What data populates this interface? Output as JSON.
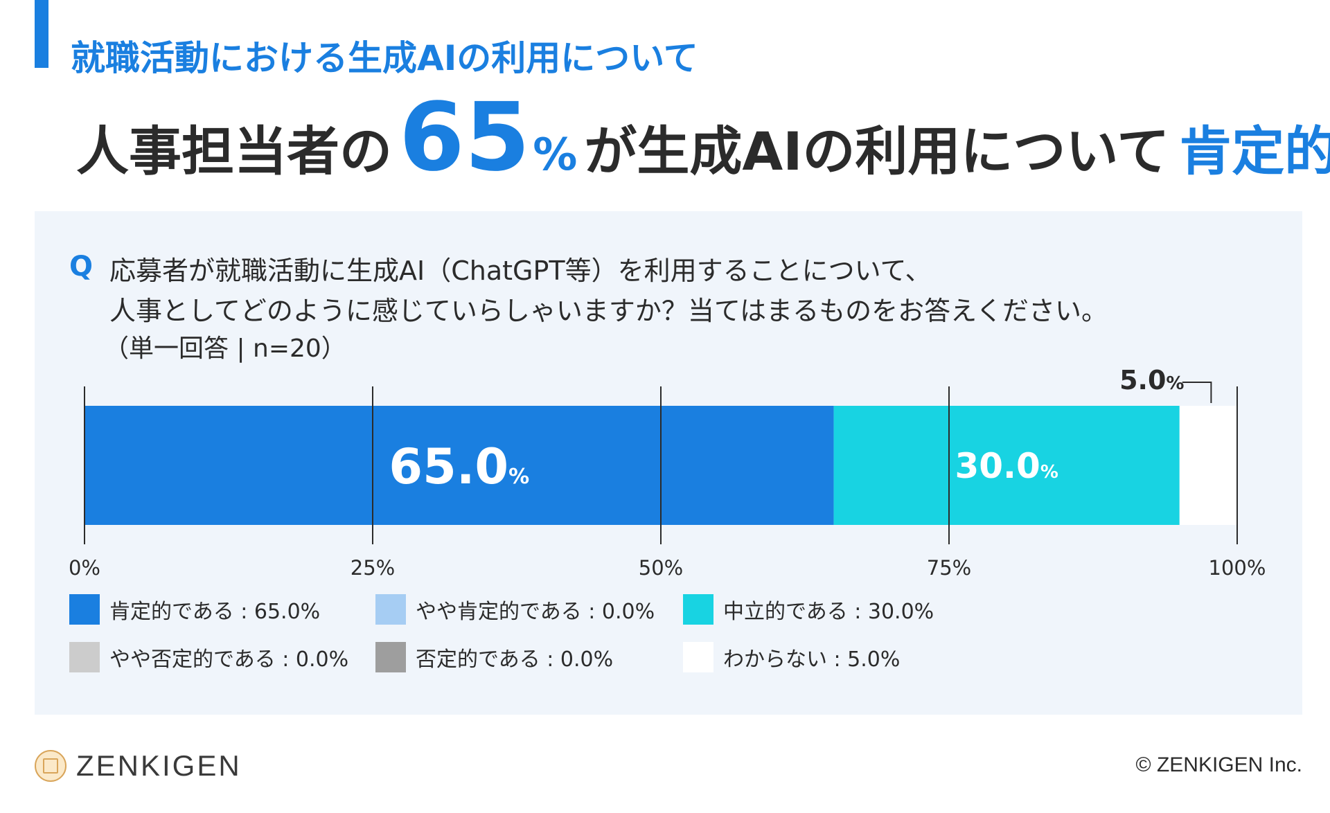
{
  "header": {
    "subtitle": "就職活動における生成AIの利用について",
    "headline_prefix": "人事担当者の",
    "headline_number": "65",
    "headline_percent": "%",
    "headline_middle": "が生成AIの利用について",
    "headline_emphasis": "肯定的"
  },
  "question": {
    "label": "Q",
    "line1": "応募者が就職活動に生成AI（ChatGPT等）を利用することについて、",
    "line2": "人事としてどのように感じていらしゃいますか？当てはまるものをお答えください。",
    "note": "（単一回答 | n=20）"
  },
  "chart_data": {
    "type": "bar",
    "orientation": "horizontal-stacked-100",
    "xlim": [
      0,
      100
    ],
    "ticks": [
      0,
      25,
      50,
      75,
      100
    ],
    "tick_labels": [
      "0%",
      "25%",
      "50%",
      "75%",
      "100%"
    ],
    "series": [
      {
        "name": "肯定的である",
        "value": 65.0,
        "color": "#1a7fe0",
        "label": "65.0",
        "label_color": "#ffffff",
        "label_position": "inside"
      },
      {
        "name": "やや肯定的である",
        "value": 0.0,
        "color": "#a6cdf3",
        "label": "",
        "label_position": "none"
      },
      {
        "name": "中立的である",
        "value": 30.0,
        "color": "#18d3e2",
        "label": "30.0",
        "label_color": "#ffffff",
        "label_position": "inside"
      },
      {
        "name": "やや否定的である",
        "value": 0.0,
        "color": "#cccccc",
        "label": "",
        "label_position": "none"
      },
      {
        "name": "否定的である",
        "value": 0.0,
        "color": "#9e9e9e",
        "label": "",
        "label_position": "none"
      },
      {
        "name": "わからない",
        "value": 5.0,
        "color": "#ffffff",
        "label": "5.0",
        "label_color": "#2b2b2b",
        "label_position": "above"
      }
    ],
    "percent_symbol": "%"
  },
  "legend": {
    "items": [
      {
        "text": "肯定的である : 65.0%",
        "color": "#1a7fe0"
      },
      {
        "text": "やや肯定的である : 0.0%",
        "color": "#a6cdf3"
      },
      {
        "text": "中立的である : 30.0%",
        "color": "#18d3e2"
      },
      {
        "text": "やや否定的である : 0.0%",
        "color": "#cccccc"
      },
      {
        "text": "否定的である : 0.0%",
        "color": "#9e9e9e"
      },
      {
        "text": "わからない : 5.0%",
        "color": "#ffffff"
      }
    ]
  },
  "footer": {
    "logo_text": "ZENKIGEN",
    "copyright": "© ZENKIGEN Inc."
  }
}
